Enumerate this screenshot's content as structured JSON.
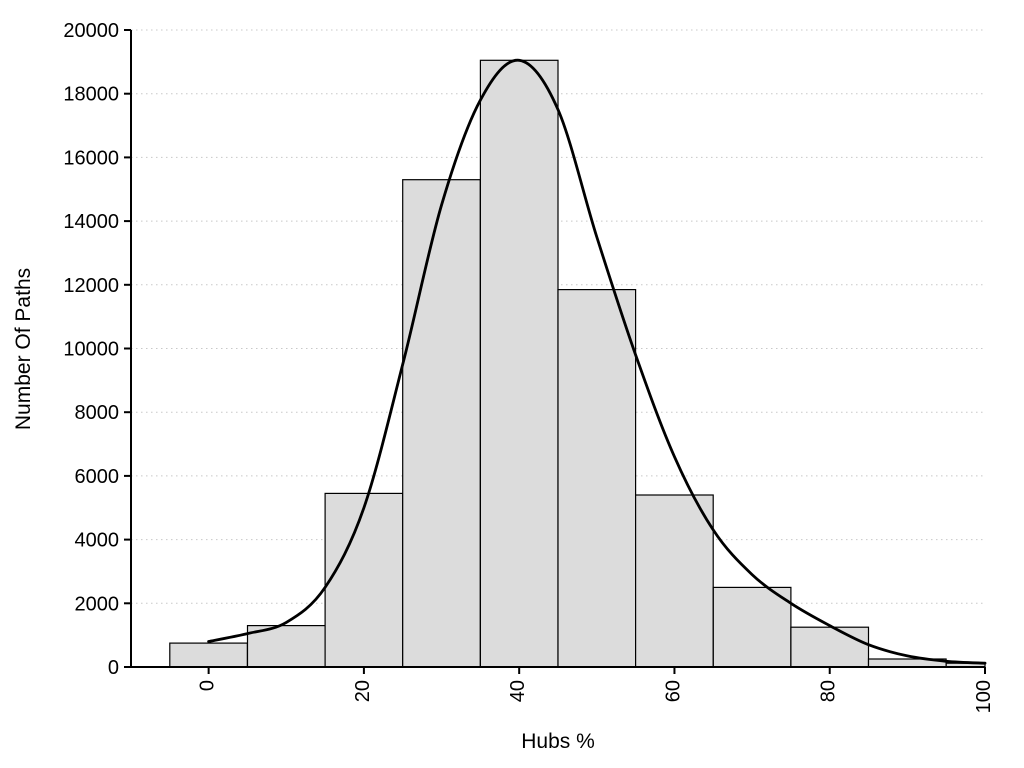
{
  "chart_data": {
    "type": "bar",
    "subtype": "histogram-with-density-curve",
    "title": "",
    "xlabel": "Hubs %",
    "ylabel": "Number Of Paths",
    "xlim": [
      -10,
      100
    ],
    "ylim": [
      0,
      20000
    ],
    "xticks": [
      0,
      20,
      40,
      60,
      80,
      100
    ],
    "yticks": [
      0,
      2000,
      4000,
      6000,
      8000,
      10000,
      12000,
      14000,
      16000,
      18000,
      20000
    ],
    "grid": "horizontal-dotted",
    "legend": "none",
    "bin_width": 10,
    "bar_centers": [
      0,
      10,
      20,
      30,
      40,
      50,
      60,
      70,
      80,
      90,
      100
    ],
    "bar_values": [
      750,
      1300,
      5450,
      15300,
      19050,
      11850,
      5400,
      2500,
      1250,
      250,
      120
    ],
    "curve": {
      "x": [
        0,
        5,
        10,
        15,
        20,
        25,
        30,
        35,
        40,
        45,
        50,
        55,
        60,
        65,
        70,
        75,
        80,
        85,
        90,
        95,
        100
      ],
      "y": [
        800,
        1050,
        1400,
        2500,
        5000,
        9500,
        14500,
        17800,
        19050,
        17500,
        13500,
        9800,
        6600,
        4300,
        2900,
        2000,
        1300,
        700,
        350,
        180,
        120
      ]
    },
    "styles": {
      "background": "#ffffff",
      "bar_fill": "#dcdcdc",
      "bar_stroke": "#000000",
      "curve_color": "#000000",
      "grid_color": "#c8c8c8",
      "axis_color": "#000000",
      "tick_label_color": "#000000"
    }
  }
}
